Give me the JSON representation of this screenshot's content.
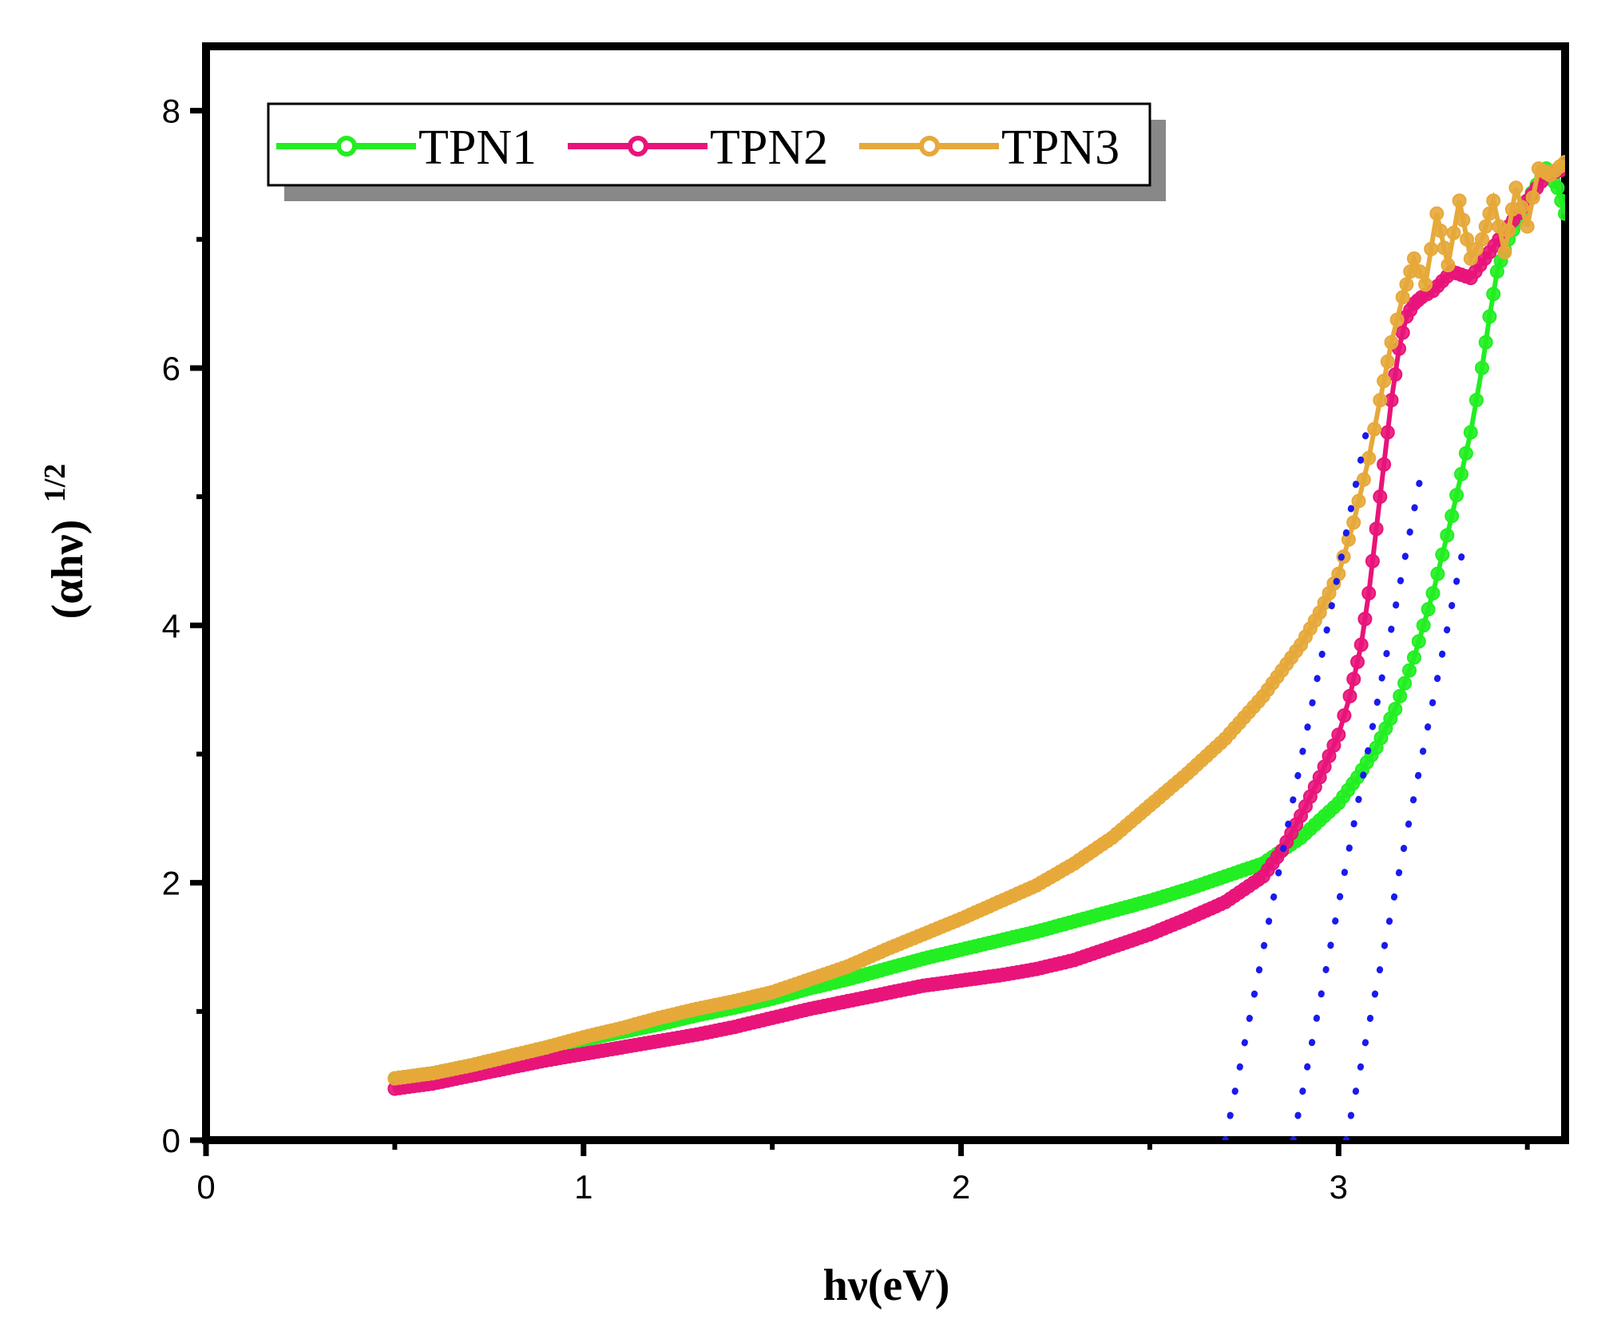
{
  "chart_data": {
    "type": "scatter",
    "title": "",
    "xlabel": "hν(eV)",
    "ylabel_main": "(αhν)",
    "ylabel_sup": "1/2",
    "xlim": [
      0,
      3.6
    ],
    "ylim": [
      0,
      8.5
    ],
    "xticks": [
      {
        "value": 0,
        "label": "0"
      },
      {
        "value": 1,
        "label": "1"
      },
      {
        "value": 2,
        "label": "2"
      },
      {
        "value": 3,
        "label": "3"
      }
    ],
    "yticks": [
      {
        "value": 0,
        "label": "0"
      },
      {
        "value": 2,
        "label": "2"
      },
      {
        "value": 4,
        "label": "4"
      },
      {
        "value": 6,
        "label": "6"
      },
      {
        "value": 8,
        "label": "8"
      }
    ],
    "legend_position": "top-left",
    "series": [
      {
        "name": "TPN1",
        "color": "#22ee22",
        "x": [
          0.5,
          0.6,
          0.7,
          0.8,
          0.9,
          1.0,
          1.1,
          1.2,
          1.3,
          1.4,
          1.5,
          1.6,
          1.7,
          1.8,
          1.9,
          2.0,
          2.1,
          2.2,
          2.3,
          2.4,
          2.5,
          2.6,
          2.7,
          2.8,
          2.9,
          3.0,
          3.05,
          3.1,
          3.15,
          3.2,
          3.25,
          3.3,
          3.35,
          3.38,
          3.4,
          3.42,
          3.45,
          3.5,
          3.55,
          3.58,
          3.6
        ],
        "y": [
          0.48,
          0.52,
          0.58,
          0.65,
          0.72,
          0.78,
          0.84,
          0.9,
          0.97,
          1.03,
          1.1,
          1.18,
          1.25,
          1.33,
          1.41,
          1.48,
          1.55,
          1.62,
          1.7,
          1.78,
          1.86,
          1.95,
          2.05,
          2.15,
          2.35,
          2.62,
          2.82,
          3.05,
          3.35,
          3.75,
          4.25,
          4.85,
          5.5,
          6.0,
          6.4,
          6.75,
          7.0,
          7.3,
          7.55,
          7.4,
          7.2
        ]
      },
      {
        "name": "TPN2",
        "color": "#e8147a",
        "x": [
          0.5,
          0.6,
          0.7,
          0.8,
          0.9,
          1.0,
          1.1,
          1.2,
          1.3,
          1.4,
          1.5,
          1.6,
          1.7,
          1.8,
          1.9,
          2.0,
          2.1,
          2.2,
          2.3,
          2.4,
          2.5,
          2.6,
          2.7,
          2.8,
          2.85,
          2.9,
          2.95,
          3.0,
          3.03,
          3.06,
          3.08,
          3.1,
          3.12,
          3.14,
          3.16,
          3.18,
          3.2,
          3.22,
          3.25,
          3.3,
          3.35,
          3.4,
          3.45,
          3.5,
          3.55,
          3.6
        ],
        "y": [
          0.4,
          0.44,
          0.5,
          0.56,
          0.62,
          0.67,
          0.72,
          0.77,
          0.82,
          0.88,
          0.95,
          1.02,
          1.08,
          1.14,
          1.2,
          1.24,
          1.28,
          1.33,
          1.4,
          1.5,
          1.6,
          1.72,
          1.85,
          2.05,
          2.25,
          2.52,
          2.82,
          3.15,
          3.45,
          3.85,
          4.25,
          4.75,
          5.25,
          5.75,
          6.15,
          6.4,
          6.5,
          6.55,
          6.6,
          6.75,
          6.7,
          6.9,
          7.1,
          7.3,
          7.5,
          7.55
        ]
      },
      {
        "name": "TPN3",
        "color": "#e6a93a",
        "x": [
          0.5,
          0.6,
          0.7,
          0.8,
          0.9,
          1.0,
          1.1,
          1.2,
          1.3,
          1.4,
          1.5,
          1.6,
          1.7,
          1.8,
          1.9,
          2.0,
          2.1,
          2.2,
          2.3,
          2.4,
          2.5,
          2.6,
          2.7,
          2.8,
          2.9,
          2.95,
          3.0,
          3.04,
          3.08,
          3.11,
          3.14,
          3.17,
          3.2,
          3.23,
          3.26,
          3.29,
          3.32,
          3.35,
          3.38,
          3.41,
          3.44,
          3.47,
          3.5,
          3.53,
          3.56,
          3.6
        ],
        "y": [
          0.48,
          0.52,
          0.58,
          0.65,
          0.72,
          0.8,
          0.87,
          0.95,
          1.02,
          1.08,
          1.15,
          1.25,
          1.35,
          1.48,
          1.6,
          1.72,
          1.85,
          1.98,
          2.15,
          2.35,
          2.6,
          2.85,
          3.12,
          3.45,
          3.85,
          4.1,
          4.4,
          4.8,
          5.3,
          5.75,
          6.2,
          6.55,
          6.85,
          6.65,
          7.2,
          6.8,
          7.3,
          6.85,
          7.0,
          7.3,
          6.9,
          7.4,
          7.1,
          7.55,
          7.5,
          7.6
        ]
      }
    ],
    "tangent_lines": {
      "color": "#1a1aee",
      "style": "dotted",
      "lines": [
        {
          "x1": 2.7,
          "y1": 0,
          "x2": 3.08,
          "y2": 5.6
        },
        {
          "x1": 2.88,
          "y1": 0,
          "x2": 3.22,
          "y2": 5.2
        },
        {
          "x1": 3.02,
          "y1": 0,
          "x2": 3.33,
          "y2": 4.6
        }
      ]
    }
  }
}
